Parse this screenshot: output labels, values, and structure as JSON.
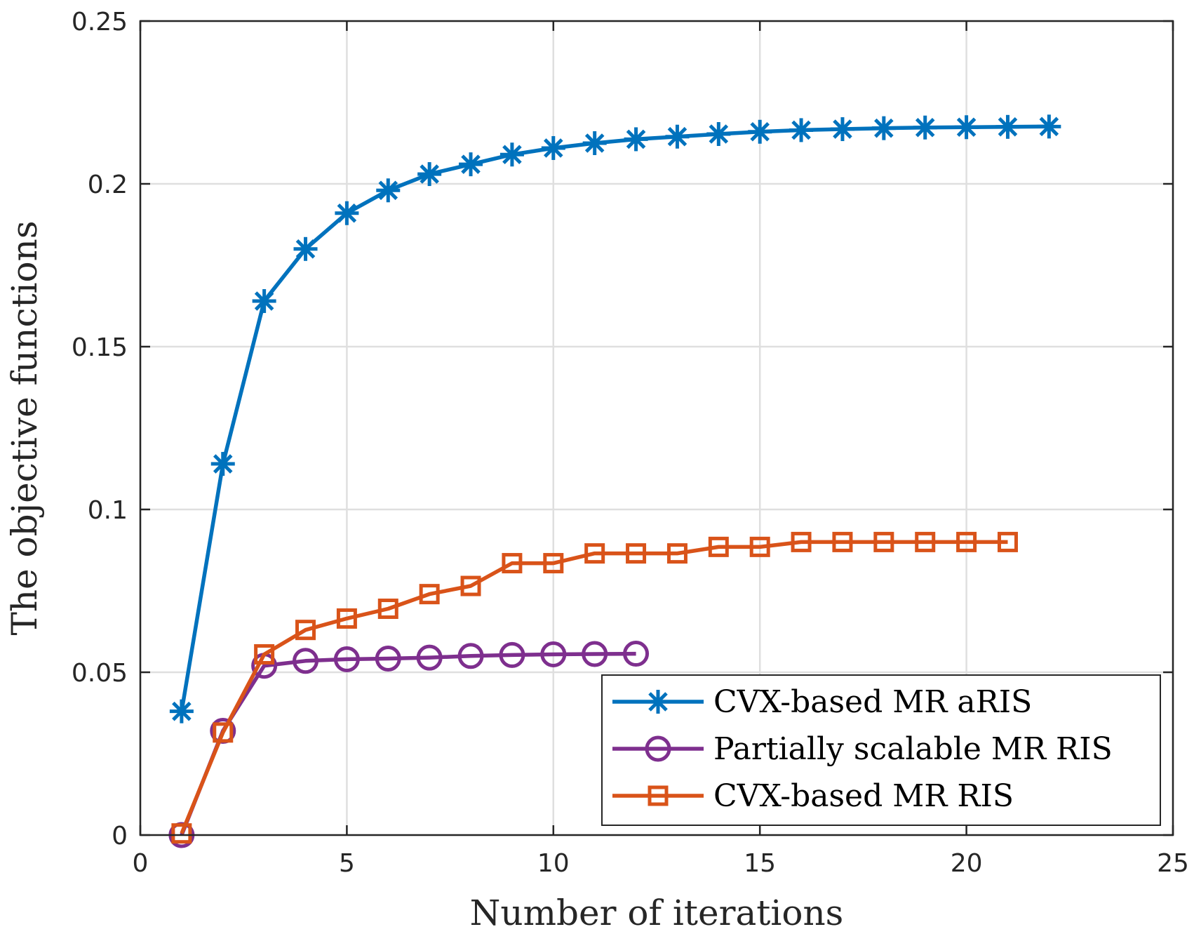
{
  "chart_data": {
    "type": "line",
    "title": "",
    "xlabel": "Number of iterations",
    "ylabel": "The objective functions",
    "xlim": [
      0,
      25
    ],
    "ylim": [
      0,
      0.25
    ],
    "xticks": [
      0,
      5,
      10,
      15,
      20,
      25
    ],
    "xtick_labels": [
      "0",
      "5",
      "10",
      "15",
      "20",
      "25"
    ],
    "yticks": [
      0,
      0.05,
      0.1,
      0.15,
      0.2,
      0.25
    ],
    "ytick_labels": [
      "0",
      "0.05",
      "0.1",
      "0.15",
      "0.2",
      "0.25"
    ],
    "grid": true,
    "legend_position": "bottom-right",
    "series": [
      {
        "name": "CVX-based MR aRIS",
        "color": "#0072BD",
        "marker": "asterisk",
        "x": [
          1,
          2,
          3,
          4,
          5,
          6,
          7,
          8,
          9,
          10,
          11,
          12,
          13,
          14,
          15,
          16,
          17,
          18,
          19,
          20,
          21,
          22
        ],
        "y": [
          0.038,
          0.114,
          0.164,
          0.18,
          0.191,
          0.198,
          0.203,
          0.206,
          0.209,
          0.211,
          0.2125,
          0.2137,
          0.2145,
          0.2153,
          0.216,
          0.2165,
          0.2168,
          0.2171,
          0.2173,
          0.2174,
          0.2175,
          0.2176
        ]
      },
      {
        "name": "Partially scalable MR RIS",
        "color": "#7E2F8E",
        "marker": "circle",
        "x": [
          1,
          2,
          3,
          4,
          5,
          6,
          7,
          8,
          9,
          10,
          11,
          12
        ],
        "y": [
          0.0,
          0.032,
          0.052,
          0.0535,
          0.054,
          0.0542,
          0.0545,
          0.055,
          0.0553,
          0.0555,
          0.0556,
          0.0557
        ]
      },
      {
        "name": "CVX-based MR RIS",
        "color": "#D95319",
        "marker": "square",
        "x": [
          1,
          2,
          3,
          4,
          5,
          6,
          7,
          8,
          9,
          10,
          11,
          12,
          13,
          14,
          15,
          16,
          17,
          18,
          19,
          20,
          21
        ],
        "y": [
          0.0005,
          0.0315,
          0.0555,
          0.063,
          0.0665,
          0.0695,
          0.074,
          0.0765,
          0.0835,
          0.0835,
          0.0865,
          0.0865,
          0.0865,
          0.0885,
          0.0885,
          0.09,
          0.09,
          0.09,
          0.09,
          0.09,
          0.09
        ]
      }
    ]
  }
}
